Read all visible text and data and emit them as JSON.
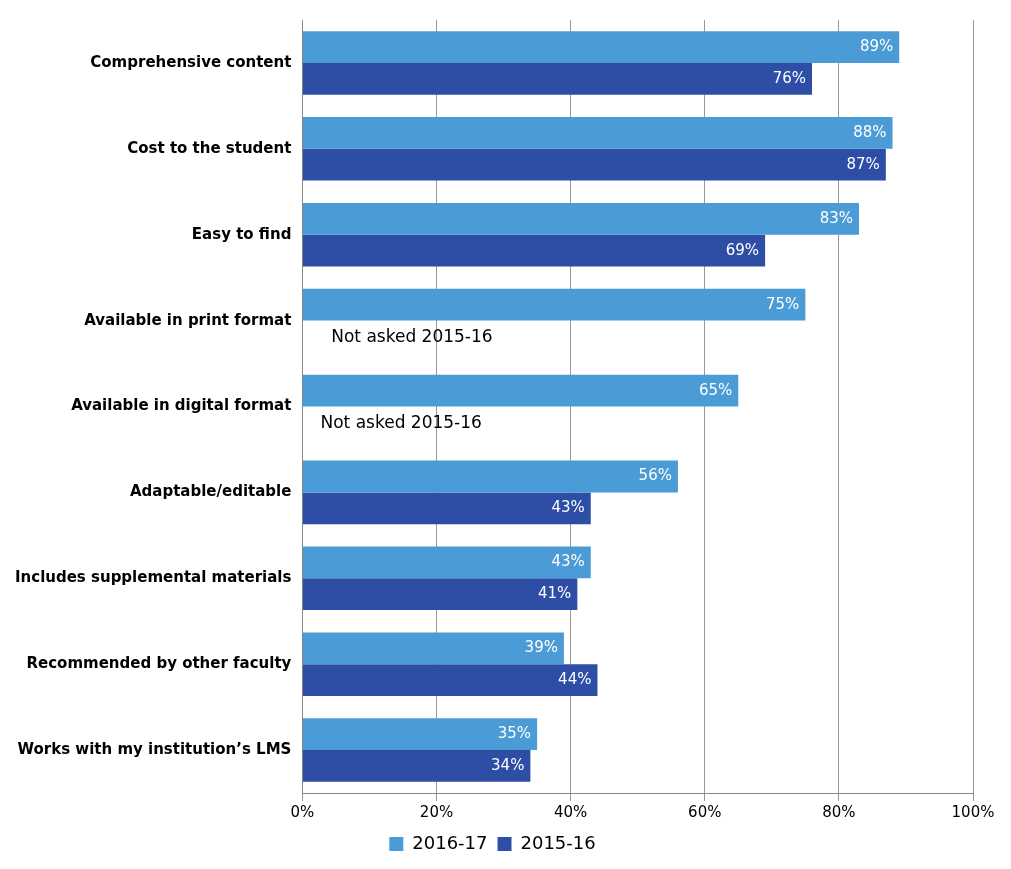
{
  "chart_data": {
    "type": "bar",
    "orientation": "horizontal",
    "categories": [
      "Comprehensive content",
      "Cost to the student",
      "Easy to find",
      "Available in print format",
      "Available in digital format",
      "Adaptable/editable",
      "Includes supplemental materials",
      "Recommended by other faculty",
      "Works with my institution’s LMS"
    ],
    "series": [
      {
        "name": "2016-17",
        "color": "#4a9bd6",
        "values": [
          89,
          88,
          83,
          75,
          65,
          56,
          43,
          39,
          35
        ],
        "value_labels": [
          "89%",
          "88%",
          "83%",
          "75%",
          "65%",
          "56%",
          "43%",
          "39%",
          "35%"
        ]
      },
      {
        "name": "2015-16",
        "color": "#2e4ea6",
        "values": [
          76,
          87,
          69,
          null,
          null,
          43,
          41,
          44,
          34
        ],
        "value_labels": [
          "76%",
          "87%",
          "69%",
          null,
          null,
          "43%",
          "41%",
          "44%",
          "34%"
        ]
      }
    ],
    "xlim": [
      0,
      100
    ],
    "xticks": [
      {
        "value": 0,
        "label": "0%"
      },
      {
        "value": 20,
        "label": "20%"
      },
      {
        "value": 40,
        "label": "40%"
      },
      {
        "value": 60,
        "label": "60%"
      },
      {
        "value": 80,
        "label": "80%"
      },
      {
        "value": 100,
        "label": "100%"
      }
    ],
    "grid": "x",
    "legend": "bottom",
    "annotations": [
      {
        "text": "Not asked 2015-16",
        "x": 4.3,
        "y": "Available in print format"
      },
      {
        "text": "Not asked 2015-16",
        "x": 2.7,
        "y": "Available in digital format"
      }
    ]
  }
}
